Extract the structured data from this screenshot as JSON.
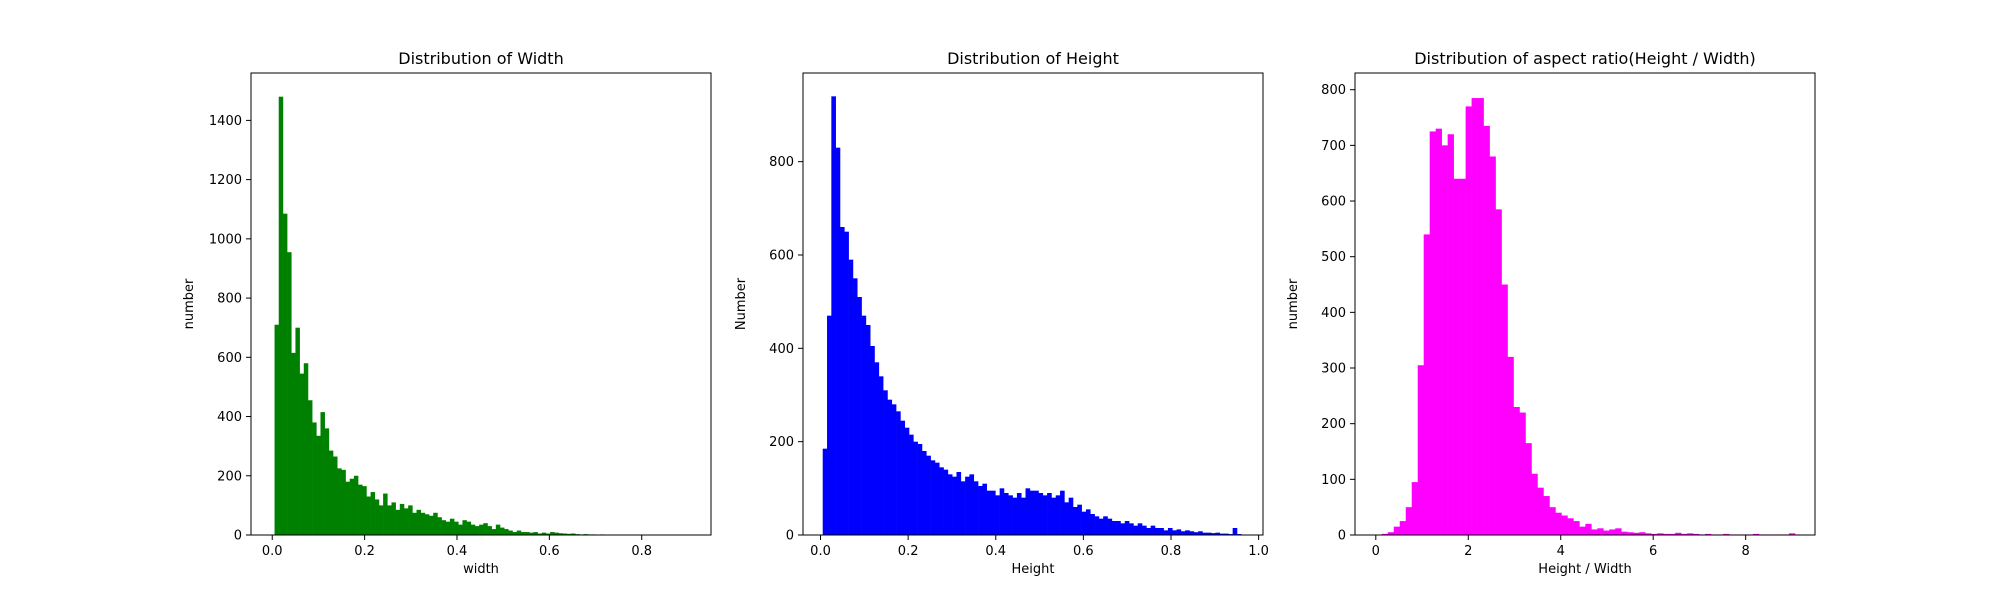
{
  "chart_data": [
    {
      "type": "bar",
      "title": "Distribution of Width",
      "xlabel": "width",
      "ylabel": "number",
      "color": "#008000",
      "xlim": [
        -0.046,
        0.95
      ],
      "ylim": [
        0,
        1560
      ],
      "xticks": [
        0.0,
        0.2,
        0.4,
        0.6,
        0.8
      ],
      "xtick_labels": [
        "0.0",
        "0.2",
        "0.4",
        "0.6",
        "0.8"
      ],
      "yticks": [
        0,
        200,
        400,
        600,
        800,
        1000,
        1200,
        1400
      ],
      "ytick_labels": [
        "0",
        "200",
        "400",
        "600",
        "800",
        "1000",
        "1200",
        "1400"
      ],
      "bin_start": 0.005,
      "bin_width": 0.00904,
      "values": [
        710,
        1480,
        1085,
        955,
        615,
        700,
        545,
        580,
        455,
        380,
        335,
        415,
        360,
        285,
        265,
        225,
        220,
        180,
        190,
        200,
        170,
        165,
        130,
        145,
        120,
        100,
        140,
        100,
        110,
        85,
        105,
        90,
        100,
        75,
        85,
        75,
        70,
        65,
        75,
        60,
        50,
        45,
        55,
        45,
        35,
        50,
        45,
        35,
        30,
        35,
        40,
        30,
        20,
        35,
        25,
        20,
        15,
        10,
        15,
        10,
        10,
        8,
        10,
        5,
        8,
        5,
        10,
        8,
        6,
        5,
        4,
        5,
        3,
        2,
        3,
        2,
        2,
        1,
        2,
        1
      ]
    },
    {
      "type": "bar",
      "title": "Distribution of Height",
      "xlabel": "Height",
      "ylabel": "Number",
      "color": "#0000ff",
      "xlim": [
        -0.04,
        1.01
      ],
      "ylim": [
        0,
        990
      ],
      "xticks": [
        0.0,
        0.2,
        0.4,
        0.6,
        0.8,
        1.0
      ],
      "xtick_labels": [
        "0.0",
        "0.2",
        "0.4",
        "0.6",
        "0.8",
        "1.0"
      ],
      "yticks": [
        0,
        200,
        400,
        600,
        800
      ],
      "ytick_labels": [
        "0",
        "200",
        "400",
        "600",
        "800"
      ],
      "bin_start": 0.005,
      "bin_width": 0.00985,
      "values": [
        185,
        470,
        940,
        830,
        660,
        650,
        590,
        550,
        510,
        470,
        450,
        405,
        370,
        340,
        310,
        290,
        280,
        265,
        245,
        230,
        215,
        200,
        195,
        180,
        170,
        160,
        155,
        145,
        140,
        130,
        125,
        135,
        115,
        125,
        130,
        115,
        105,
        110,
        95,
        95,
        85,
        100,
        90,
        85,
        80,
        90,
        80,
        100,
        95,
        95,
        90,
        85,
        90,
        80,
        85,
        95,
        70,
        80,
        60,
        65,
        50,
        55,
        45,
        40,
        35,
        40,
        35,
        30,
        30,
        25,
        30,
        25,
        20,
        25,
        20,
        15,
        20,
        15,
        15,
        10,
        15,
        10,
        12,
        8,
        10,
        8,
        6,
        8,
        5,
        5,
        4,
        5,
        3,
        3,
        2,
        15,
        2,
        1
      ]
    },
    {
      "type": "bar",
      "title": "Distribution of aspect ratio(Height / Width)",
      "xlabel": "Height / Width",
      "ylabel": "number",
      "color": "#ff00ff",
      "xlim": [
        -0.45,
        9.5
      ],
      "ylim": [
        0,
        830
      ],
      "xticks": [
        0,
        2,
        4,
        6,
        8
      ],
      "xtick_labels": [
        "0",
        "2",
        "4",
        "6",
        "8"
      ],
      "yticks": [
        0,
        100,
        200,
        300,
        400,
        500,
        600,
        700,
        800
      ],
      "ytick_labels": [
        "0",
        "100",
        "200",
        "300",
        "400",
        "500",
        "600",
        "700",
        "800"
      ],
      "bin_start": 0.0,
      "bin_width": 0.1295,
      "values": [
        0,
        2,
        5,
        15,
        25,
        50,
        95,
        305,
        540,
        725,
        730,
        700,
        720,
        640,
        640,
        770,
        785,
        785,
        735,
        680,
        585,
        450,
        320,
        230,
        220,
        165,
        110,
        85,
        70,
        50,
        40,
        35,
        30,
        25,
        15,
        20,
        10,
        12,
        8,
        10,
        12,
        6,
        5,
        4,
        5,
        3,
        2,
        3,
        2,
        2,
        4,
        2,
        3,
        2,
        1,
        2,
        1,
        1,
        2,
        1,
        1,
        1,
        1,
        2,
        1,
        1,
        1,
        1,
        1,
        3,
        1
      ]
    }
  ]
}
